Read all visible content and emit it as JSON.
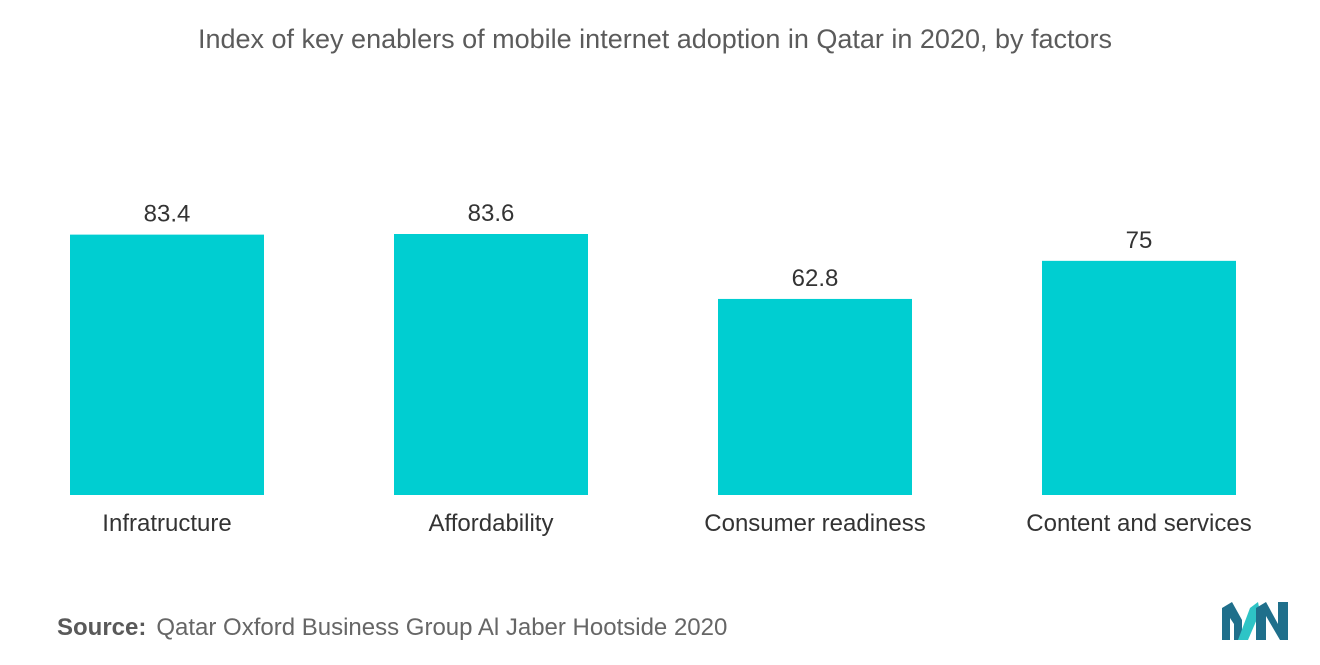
{
  "chart_data": {
    "type": "bar",
    "title": "Index of key enablers of mobile internet adoption in Qatar in 2020, by factors",
    "categories": [
      "Infratructure",
      "Affordability",
      "Consumer readiness",
      "Content and services"
    ],
    "values": [
      83.4,
      83.6,
      62.8,
      75
    ],
    "value_labels": [
      "83.4",
      "83.6",
      "62.8",
      "75"
    ],
    "xlabel": "",
    "ylabel": "",
    "ylim": [
      0,
      83.6
    ],
    "grid": false,
    "legend": "none"
  },
  "colors": {
    "bar": "#00CED1",
    "logo_dark": "#1f6f8b",
    "logo_light": "#2ec4c6"
  },
  "footer": {
    "source_label": "Source:",
    "source_text": "Qatar Oxford Business Group Al Jaber Hootside 2020"
  },
  "logo": {
    "icon": "mordor-intelligence-logo-icon"
  }
}
